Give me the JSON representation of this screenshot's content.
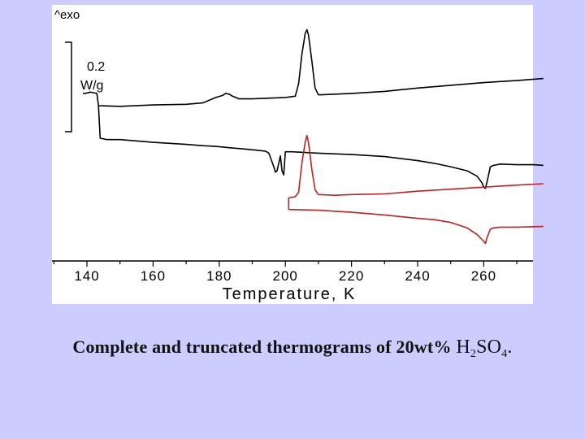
{
  "chart_data": {
    "type": "line",
    "xlabel": "Temperature, K",
    "x_ticks": [
      140,
      160,
      180,
      200,
      220,
      240,
      260
    ],
    "xlim": [
      137,
      279
    ],
    "exo_label": "^exo",
    "scale_bar_label_line1": "0.2",
    "scale_bar_label_line2": "W/g",
    "scale_bar_value_W_per_g": 0.2,
    "grid": false,
    "legend": "none",
    "series": [
      {
        "color": "#000000",
        "points": [
          [
            138.8,
            0.21
          ],
          [
            139.5,
            0.21
          ],
          [
            141,
            0.22
          ],
          [
            143,
            0.21
          ],
          [
            143.5,
            0.12
          ],
          [
            144,
            -0.12
          ],
          [
            146,
            -0.13
          ],
          [
            150,
            -0.13
          ],
          [
            160,
            -0.15
          ],
          [
            170,
            -0.165
          ],
          [
            175,
            -0.175
          ],
          [
            179,
            -0.18
          ],
          [
            183,
            -0.19
          ],
          [
            188,
            -0.2
          ],
          [
            192,
            -0.21
          ],
          [
            194,
            -0.215
          ],
          [
            195,
            -0.23
          ],
          [
            196.5,
            -0.33
          ],
          [
            197,
            -0.37
          ],
          [
            197.5,
            -0.36
          ],
          [
            198.5,
            -0.25
          ],
          [
            199,
            -0.36
          ],
          [
            199.5,
            -0.39
          ],
          [
            200,
            -0.22
          ],
          [
            202,
            -0.22
          ],
          [
            206,
            -0.225
          ],
          [
            210,
            -0.23
          ],
          [
            220,
            -0.24
          ],
          [
            230,
            -0.255
          ],
          [
            240,
            -0.285
          ],
          [
            245,
            -0.305
          ],
          [
            250,
            -0.33
          ],
          [
            255,
            -0.36
          ],
          [
            258,
            -0.4
          ],
          [
            259.5,
            -0.45
          ],
          [
            260,
            -0.48
          ],
          [
            260.5,
            -0.49
          ],
          [
            261,
            -0.44
          ],
          [
            262,
            -0.33
          ],
          [
            263,
            -0.32
          ],
          [
            265,
            -0.31
          ],
          [
            270,
            -0.315
          ],
          [
            275,
            -0.315
          ],
          [
            278,
            -0.32
          ]
        ]
      },
      {
        "color": "#000000",
        "points": [
          [
            143.5,
            0.12
          ],
          [
            150,
            0.115
          ],
          [
            160,
            0.125
          ],
          [
            170,
            0.13
          ],
          [
            175,
            0.14
          ],
          [
            177,
            0.16
          ],
          [
            179,
            0.18
          ],
          [
            181,
            0.195
          ],
          [
            182,
            0.21
          ],
          [
            183,
            0.205
          ],
          [
            184,
            0.19
          ],
          [
            185,
            0.18
          ],
          [
            186,
            0.17
          ],
          [
            190,
            0.17
          ],
          [
            200,
            0.18
          ],
          [
            203,
            0.19
          ],
          [
            204,
            0.28
          ],
          [
            205,
            0.5
          ],
          [
            206,
            0.65
          ],
          [
            206.5,
            0.68
          ],
          [
            207,
            0.64
          ],
          [
            208,
            0.45
          ],
          [
            209,
            0.25
          ],
          [
            210,
            0.2
          ],
          [
            211,
            0.2
          ],
          [
            220,
            0.21
          ],
          [
            230,
            0.225
          ],
          [
            240,
            0.25
          ],
          [
            250,
            0.27
          ],
          [
            260,
            0.29
          ],
          [
            270,
            0.305
          ],
          [
            278,
            0.32
          ]
        ]
      },
      {
        "color": "#c02020",
        "points": [
          [
            201,
            -0.645
          ],
          [
            201,
            -0.56
          ],
          [
            203,
            -0.55
          ],
          [
            204,
            -0.52
          ],
          [
            205,
            -0.3
          ],
          [
            206,
            -0.15
          ],
          [
            206.5,
            -0.1
          ],
          [
            207,
            -0.15
          ],
          [
            208,
            -0.35
          ],
          [
            209,
            -0.5
          ],
          [
            210,
            -0.535
          ],
          [
            215,
            -0.54
          ],
          [
            220,
            -0.535
          ],
          [
            230,
            -0.53
          ],
          [
            240,
            -0.51
          ],
          [
            250,
            -0.495
          ],
          [
            260,
            -0.48
          ],
          [
            270,
            -0.465
          ],
          [
            278,
            -0.455
          ]
        ]
      },
      {
        "color": "#c02020",
        "points": [
          [
            201,
            -0.645
          ],
          [
            210,
            -0.65
          ],
          [
            220,
            -0.665
          ],
          [
            230,
            -0.685
          ],
          [
            240,
            -0.71
          ],
          [
            245,
            -0.72
          ],
          [
            250,
            -0.74
          ],
          [
            255,
            -0.78
          ],
          [
            258,
            -0.83
          ],
          [
            260,
            -0.88
          ],
          [
            260.5,
            -0.895
          ],
          [
            261,
            -0.85
          ],
          [
            262,
            -0.79
          ],
          [
            263,
            -0.78
          ],
          [
            265,
            -0.775
          ],
          [
            270,
            -0.775
          ],
          [
            278,
            -0.77
          ]
        ]
      }
    ]
  },
  "caption": {
    "text": "Complete and truncated thermograms of 20wt%",
    "formula_h": "H",
    "formula_sub1": "2",
    "formula_so": "SO",
    "formula_sub2": "4",
    "formula_end": "."
  }
}
